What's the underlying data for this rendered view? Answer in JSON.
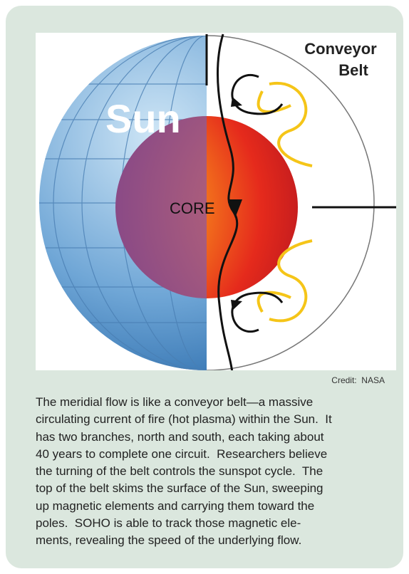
{
  "figure": {
    "labels": {
      "sun": "Sun",
      "core": "CORE",
      "conveyor_belt": [
        "Conveyor",
        "Belt"
      ]
    },
    "credit": "Credit:  NASA"
  },
  "caption": {
    "lines": [
      "The meridial flow is like a conveyor belt—a massive",
      "circulating current of fire (hot plasma) within the Sun.  It",
      "has two branches, north and south, each taking about",
      "40 years to complete one circuit.  Researchers believe",
      "the turning of the belt controls the sunspot cycle.  The",
      "top of the belt skims the surface of the Sun, sweeping",
      "up magnetic elements and carrying them toward the",
      "poles.  SOHO is able to track those magnetic ele-",
      "ments, revealing the speed of the underlying flow."
    ]
  }
}
